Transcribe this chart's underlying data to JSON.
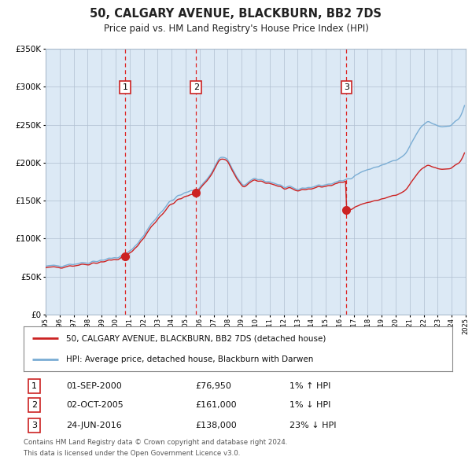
{
  "title": "50, CALGARY AVENUE, BLACKBURN, BB2 7DS",
  "subtitle": "Price paid vs. HM Land Registry's House Price Index (HPI)",
  "transactions": [
    {
      "num": 1,
      "date_str": "01-SEP-2000",
      "date_x": 2000.67,
      "price": 76950,
      "hpi_pct": "1%",
      "hpi_dir": "↑"
    },
    {
      "num": 2,
      "date_str": "02-OCT-2005",
      "date_x": 2005.75,
      "price": 161000,
      "hpi_pct": "1%",
      "hpi_dir": "↓"
    },
    {
      "num": 3,
      "date_str": "24-JUN-2016",
      "date_x": 2016.48,
      "price": 138000,
      "hpi_pct": "23%",
      "hpi_dir": "↓"
    }
  ],
  "legend_line1": "50, CALGARY AVENUE, BLACKBURN, BB2 7DS (detached house)",
  "legend_line2": "HPI: Average price, detached house, Blackburn with Darwen",
  "footnote1": "Contains HM Land Registry data © Crown copyright and database right 2024.",
  "footnote2": "This data is licensed under the Open Government Licence v3.0.",
  "hpi_color": "#7aadd4",
  "price_color": "#cc2222",
  "bg_color": "#dce9f5",
  "plot_bg": "#ffffff",
  "grid_color": "#b0bfd0",
  "dashed_color": "#dd2222",
  "marker_color": "#cc2222",
  "xmin": 1995,
  "xmax": 2025,
  "ymin": 0,
  "ymax": 350000,
  "yticks": [
    0,
    50000,
    100000,
    150000,
    200000,
    250000,
    300000,
    350000
  ],
  "hpi_anchors_x": [
    1995.0,
    1996.0,
    1997.0,
    1998.0,
    1999.0,
    2000.0,
    2000.5,
    2001.0,
    2001.5,
    2002.0,
    2002.5,
    2003.0,
    2003.5,
    2004.0,
    2004.5,
    2005.0,
    2005.5,
    2005.75,
    2006.0,
    2006.5,
    2007.0,
    2007.3,
    2007.6,
    2008.0,
    2008.3,
    2008.6,
    2009.0,
    2009.5,
    2010.0,
    2010.5,
    2011.0,
    2011.5,
    2012.0,
    2012.5,
    2013.0,
    2013.5,
    2014.0,
    2014.5,
    2015.0,
    2015.5,
    2016.0,
    2016.48,
    2017.0,
    2017.5,
    2018.0,
    2018.5,
    2019.0,
    2019.5,
    2020.0,
    2020.5,
    2021.0,
    2021.5,
    2022.0,
    2022.3,
    2022.6,
    2023.0,
    2023.5,
    2024.0,
    2024.5,
    2024.9
  ],
  "hpi_anchors_y": [
    63000,
    65000,
    67000,
    69000,
    72000,
    75000,
    77500,
    83000,
    93000,
    104000,
    118000,
    130000,
    141000,
    150000,
    156000,
    160000,
    163000,
    164000,
    168000,
    178000,
    192000,
    203000,
    207000,
    203000,
    193000,
    182000,
    172000,
    174000,
    178000,
    177000,
    175000,
    172000,
    168000,
    166000,
    165000,
    167000,
    168000,
    170000,
    171000,
    173000,
    175000,
    178000,
    183000,
    187000,
    191000,
    193000,
    197000,
    200000,
    203000,
    208000,
    220000,
    238000,
    250000,
    253000,
    252000,
    249000,
    248000,
    251000,
    258000,
    275000
  ]
}
